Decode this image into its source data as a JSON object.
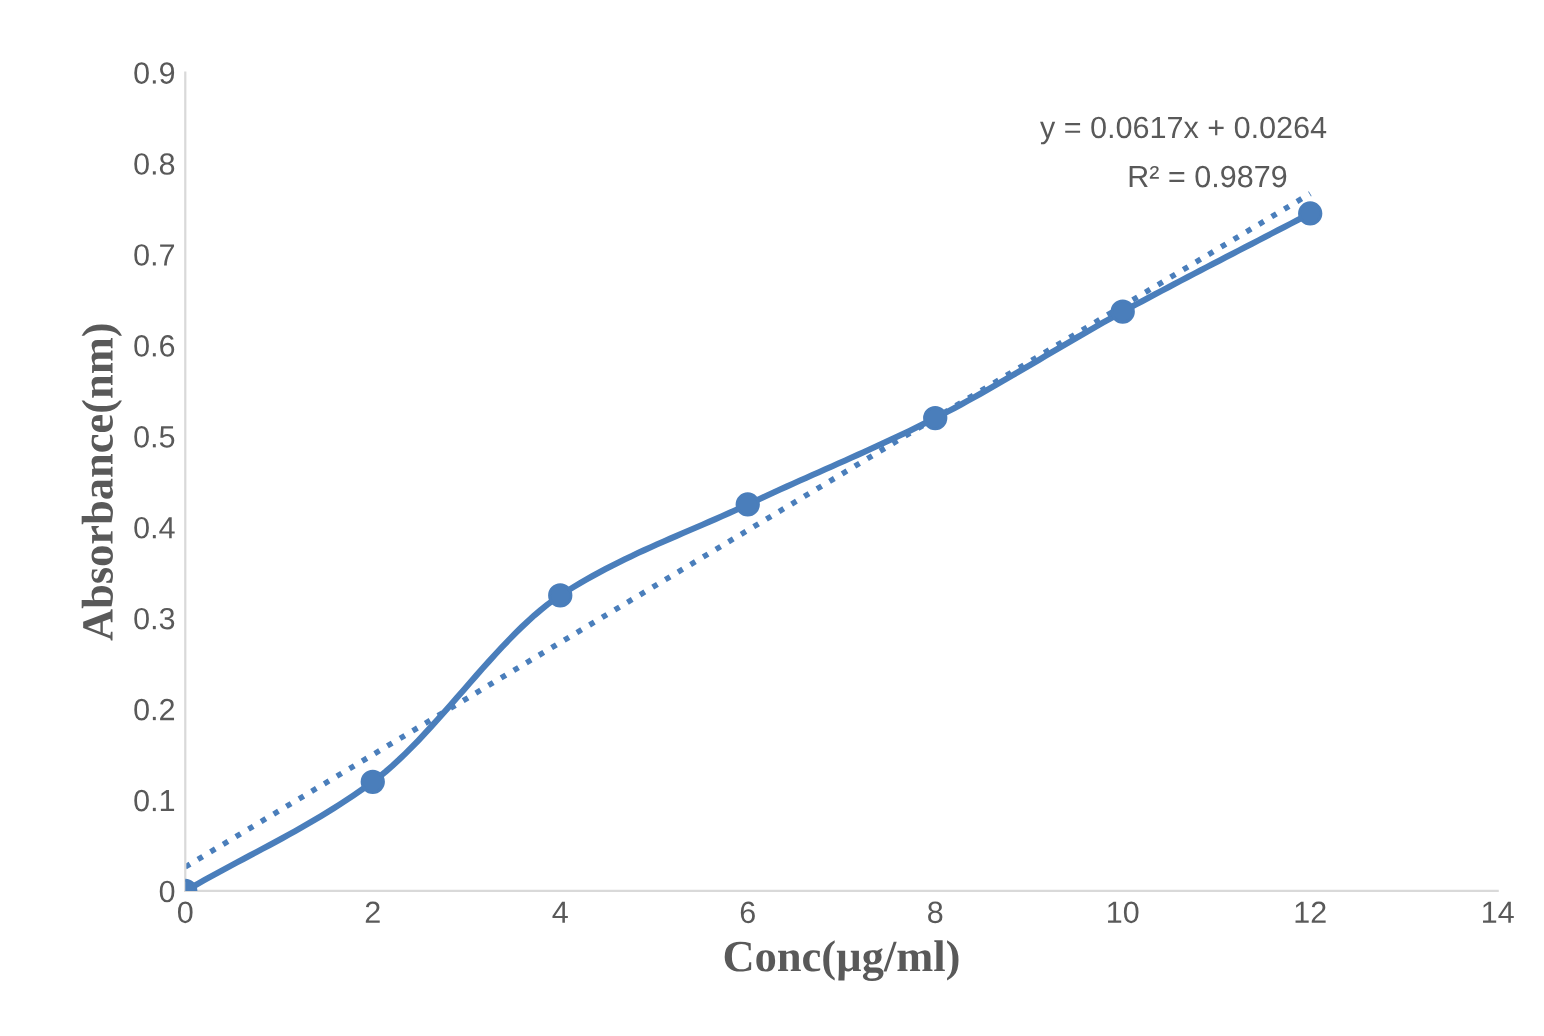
{
  "chart_data": {
    "type": "line",
    "xlabel": "Conc(µg/ml)",
    "ylabel": "Absorbance(nm)",
    "x": [
      0,
      2,
      4,
      6,
      8,
      10,
      12
    ],
    "series": [
      {
        "color": "#4a7ebb",
        "values": [
          0,
          0.12,
          0.325,
          0.425,
          0.52,
          0.637,
          0.745
        ],
        "marker": "circle",
        "line_style": "solid"
      },
      {
        "type": "line",
        "color": "#4a7ebb",
        "x": [
          0,
          12
        ],
        "values": [
          0.0264,
          0.7668
        ],
        "marker": "none",
        "line_style": "dotted"
      }
    ],
    "annotations": [
      "y = 0.0617x + 0.0264",
      "R² = 0.9879"
    ],
    "xlim": [
      0,
      14
    ],
    "xticks": [
      0,
      2,
      4,
      6,
      8,
      10,
      12,
      14
    ],
    "ylim": [
      0,
      0.9
    ],
    "yticks": [
      0,
      0.1,
      0.2,
      0.3,
      0.4,
      0.5,
      0.6,
      0.7,
      0.8,
      0.9
    ],
    "grid": false,
    "legend": false
  }
}
